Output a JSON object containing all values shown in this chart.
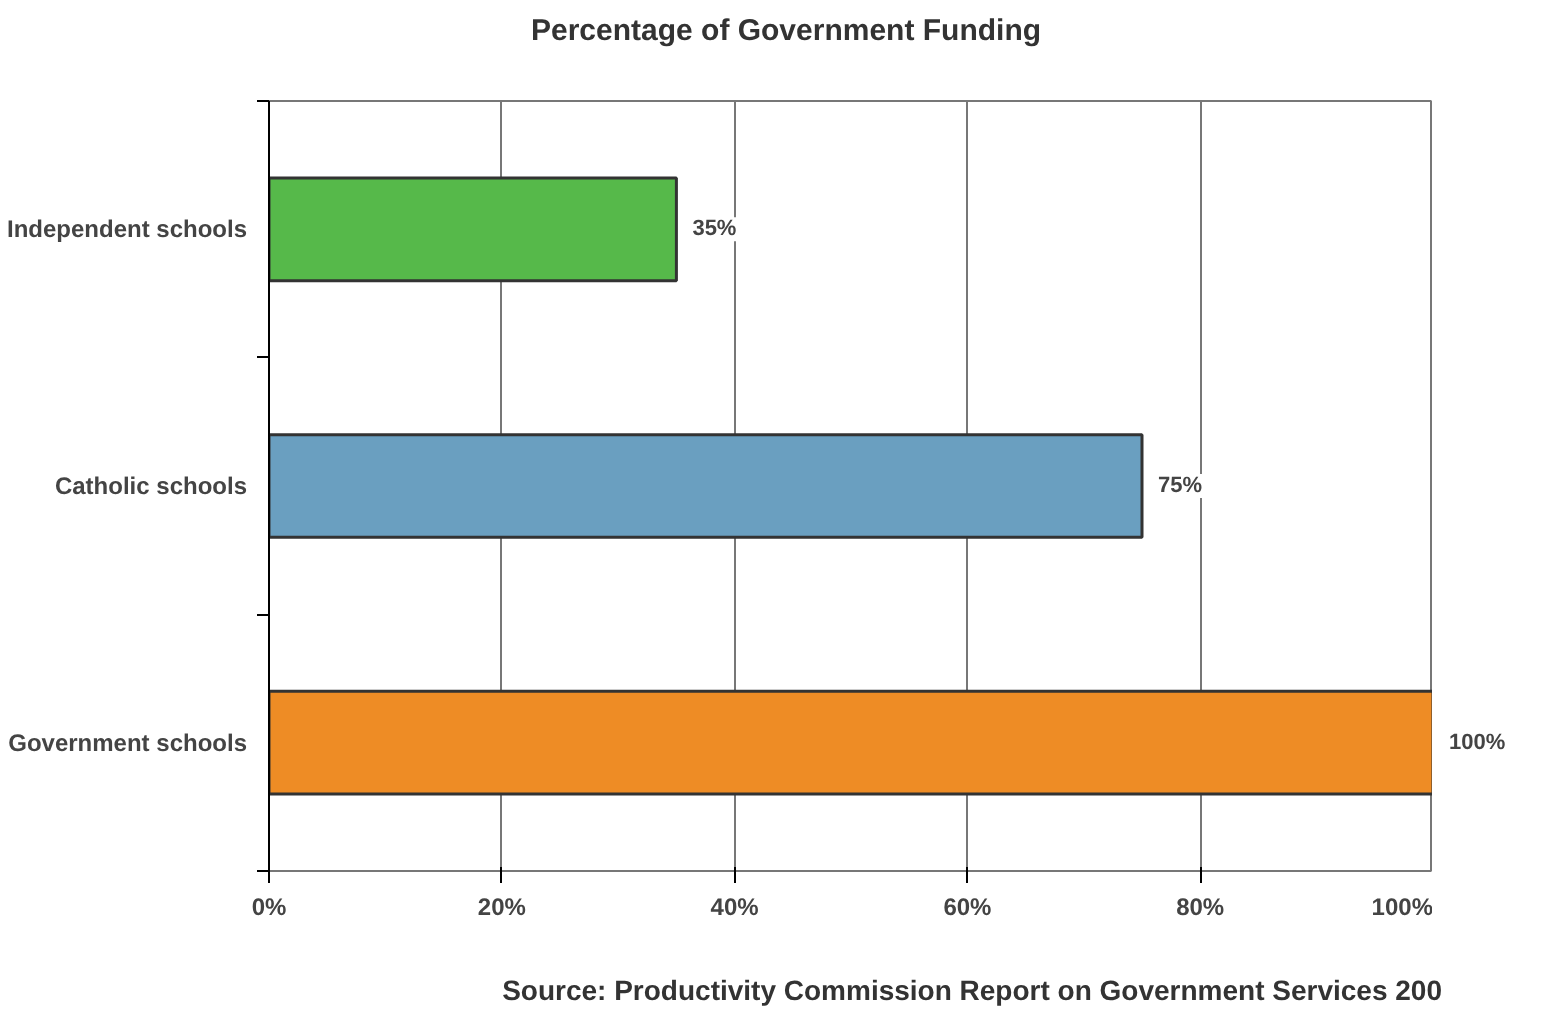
{
  "chart_data": {
    "type": "bar",
    "orientation": "horizontal",
    "title": "Percentage of Government Funding",
    "categories": [
      "Independent schools",
      "Catholic schools",
      "Government schools"
    ],
    "values": [
      35,
      75,
      100
    ],
    "colors": [
      "#56b94a",
      "#6a9fc0",
      "#ee8c25"
    ],
    "value_labels": [
      "35%",
      "75%",
      "100%"
    ],
    "xlim": [
      0,
      100
    ],
    "xticks": [
      {
        "value": 0,
        "label": "0%"
      },
      {
        "value": 20,
        "label": "20%"
      },
      {
        "value": 40,
        "label": "40%"
      },
      {
        "value": 60,
        "label": "60%"
      },
      {
        "value": 80,
        "label": "80%"
      },
      {
        "value": 100,
        "label": "100%"
      }
    ],
    "grid": "x",
    "annotations": [
      "Source: Productivity Commission Report on Government Services 200"
    ]
  }
}
